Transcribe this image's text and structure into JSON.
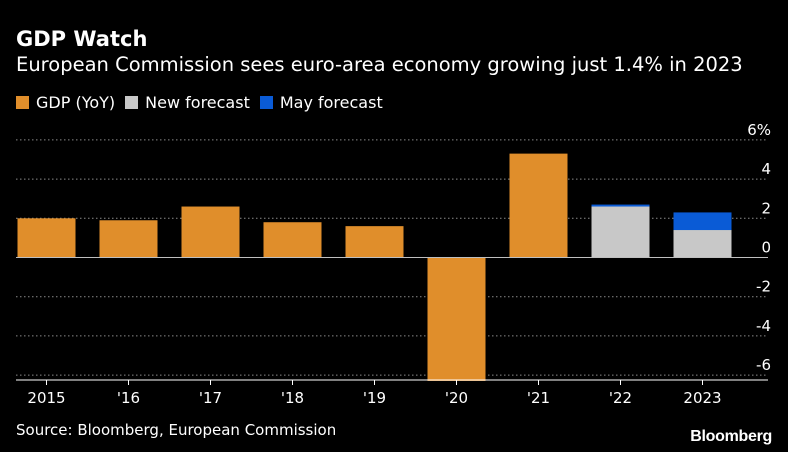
{
  "header": {
    "title": "GDP Watch",
    "subtitle": "European Commission sees euro-area economy growing just 1.4% in 2023"
  },
  "legend": [
    {
      "label": "GDP (YoY)",
      "color": "#e08e2b"
    },
    {
      "label": "New forecast",
      "color": "#c8c8c8"
    },
    {
      "label": "May forecast",
      "color": "#0a5bd6"
    }
  ],
  "chart_data": {
    "type": "bar",
    "title": "GDP Watch",
    "subtitle": "European Commission sees euro-area economy growing just 1.4% in 2023",
    "categories": [
      "2015",
      "'16",
      "'17",
      "'18",
      "'19",
      "'20",
      "'21",
      "'22",
      "2023"
    ],
    "series": [
      {
        "name": "GDP (YoY)",
        "color": "#e08e2b",
        "values": [
          2.0,
          1.9,
          2.6,
          1.8,
          1.6,
          -6.3,
          5.3,
          null,
          null
        ]
      },
      {
        "name": "New forecast",
        "color": "#c8c8c8",
        "values": [
          null,
          null,
          null,
          null,
          null,
          null,
          null,
          2.6,
          1.4
        ]
      },
      {
        "name": "May forecast",
        "color": "#0a5bd6",
        "values": [
          null,
          null,
          null,
          null,
          null,
          null,
          null,
          2.7,
          2.3
        ]
      }
    ],
    "y_ticks": [
      {
        "value": 6,
        "label": "6%"
      },
      {
        "value": 4,
        "label": "4"
      },
      {
        "value": 2,
        "label": "2"
      },
      {
        "value": 0,
        "label": "0"
      },
      {
        "value": -2,
        "label": "-2"
      },
      {
        "value": -4,
        "label": "-4"
      },
      {
        "value": -6,
        "label": "-6"
      }
    ],
    "ylim": [
      -6.3,
      6
    ],
    "grid": true,
    "xlabel": "",
    "ylabel": "",
    "legend_position": "top-left"
  },
  "footer": {
    "source": "Source: Bloomberg, European Commission",
    "brand": "Bloomberg"
  }
}
